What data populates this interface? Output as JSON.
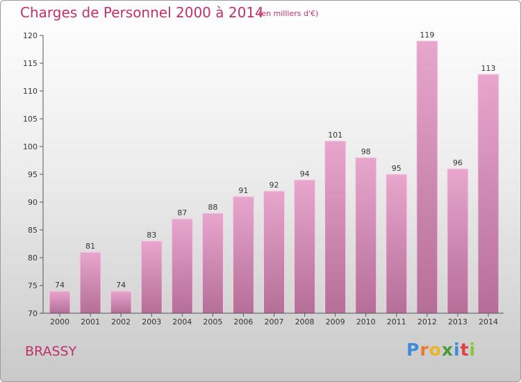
{
  "header": {
    "title": "Charges de Personnel 2000 à 2014",
    "subtitle": "(en milliers d'€)"
  },
  "footer": {
    "commune": "BRASSY",
    "logo": [
      "P",
      "r",
      "o",
      "x",
      "i",
      "t",
      "i"
    ]
  },
  "colors": {
    "accent": "#c0306a",
    "bar_top": "#e8a6cd",
    "bar_bottom": "#b56e98",
    "logo_letters": [
      "#3d8bd8",
      "#e87a2a",
      "#f0b323",
      "#4a9a3a",
      "#3d8bd8",
      "#e04040",
      "#8ac43a"
    ]
  },
  "chart_data": {
    "type": "bar",
    "title": "Charges de Personnel 2000 à 2014",
    "subtitle": "(en milliers d'€)",
    "categories": [
      "2000",
      "2001",
      "2002",
      "2003",
      "2004",
      "2005",
      "2006",
      "2007",
      "2008",
      "2009",
      "2010",
      "2011",
      "2012",
      "2013",
      "2014"
    ],
    "values": [
      74,
      81,
      74,
      83,
      87,
      88,
      91,
      92,
      94,
      101,
      98,
      95,
      119,
      96,
      113
    ],
    "ylim": [
      70,
      120
    ],
    "yticks": [
      70,
      75,
      80,
      85,
      90,
      95,
      100,
      105,
      110,
      115,
      120
    ],
    "grid": false,
    "data_labels": true
  }
}
